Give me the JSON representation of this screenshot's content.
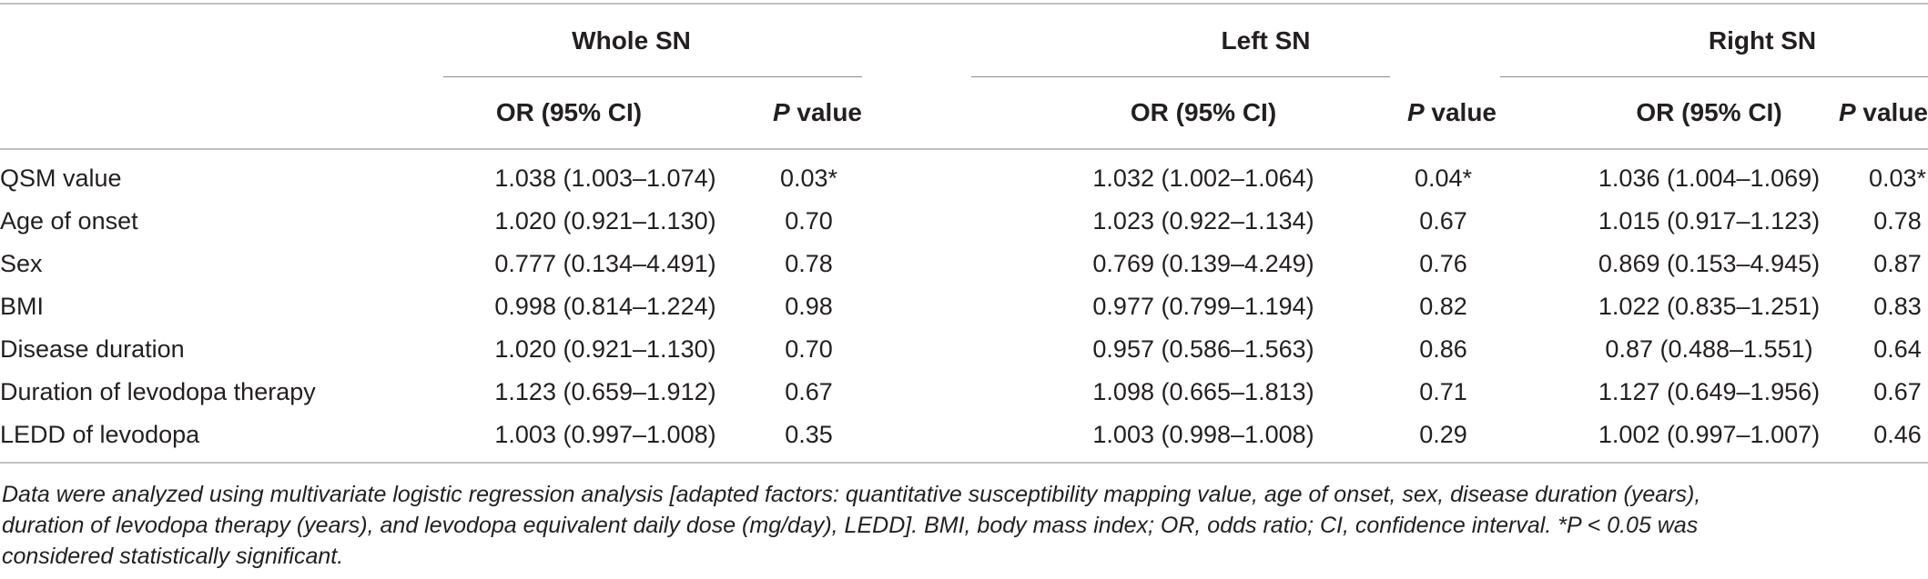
{
  "table": {
    "groups": [
      "Whole SN",
      "Left SN",
      "Right SN"
    ],
    "subheaders": {
      "or": "OR (95% CI)",
      "p_italic": "P",
      "p_rest": " value"
    },
    "rows": [
      {
        "label": "QSM value",
        "whole_or": "1.038 (1.003–1.074)",
        "whole_p": "0.03*",
        "left_or": "1.032 (1.002–1.064)",
        "left_p": "0.04*",
        "right_or": "1.036 (1.004–1.069)",
        "right_p": "0.03*"
      },
      {
        "label": "Age of onset",
        "whole_or": "1.020 (0.921–1.130)",
        "whole_p": "0.70",
        "left_or": "1.023 (0.922–1.134)",
        "left_p": "0.67",
        "right_or": "1.015 (0.917–1.123)",
        "right_p": "0.78"
      },
      {
        "label": "Sex",
        "whole_or": "0.777 (0.134–4.491)",
        "whole_p": "0.78",
        "left_or": "0.769 (0.139–4.249)",
        "left_p": "0.76",
        "right_or": "0.869 (0.153–4.945)",
        "right_p": "0.87"
      },
      {
        "label": "BMI",
        "whole_or": "0.998 (0.814–1.224)",
        "whole_p": "0.98",
        "left_or": "0.977 (0.799–1.194)",
        "left_p": "0.82",
        "right_or": "1.022 (0.835–1.251)",
        "right_p": "0.83"
      },
      {
        "label": "Disease duration",
        "whole_or": "1.020 (0.921–1.130)",
        "whole_p": "0.70",
        "left_or": "0.957 (0.586–1.563)",
        "left_p": "0.86",
        "right_or": "0.87 (0.488–1.551)",
        "right_p": "0.64"
      },
      {
        "label": "Duration of levodopa therapy",
        "whole_or": "1.123 (0.659–1.912)",
        "whole_p": "0.67",
        "left_or": "1.098 (0.665–1.813)",
        "left_p": "0.71",
        "right_or": "1.127 (0.649–1.956)",
        "right_p": "0.67"
      },
      {
        "label": "LEDD of levodopa",
        "whole_or": "1.003 (0.997–1.008)",
        "whole_p": "0.35",
        "left_or": "1.003 (0.998–1.008)",
        "left_p": "0.29",
        "right_or": "1.002 (0.997–1.007)",
        "right_p": "0.46"
      }
    ]
  },
  "footnote": {
    "line1": "Data were analyzed using multivariate logistic regression analysis [adapted factors: quantitative susceptibility mapping value, age of onset, sex, disease duration (years),",
    "line2": "duration of levodopa therapy (years), and levodopa equivalent daily dose (mg/day), LEDD]. BMI, body mass index; OR, odds ratio; CI, confidence interval. *P < 0.05 was",
    "line3": "considered statistically significant."
  }
}
